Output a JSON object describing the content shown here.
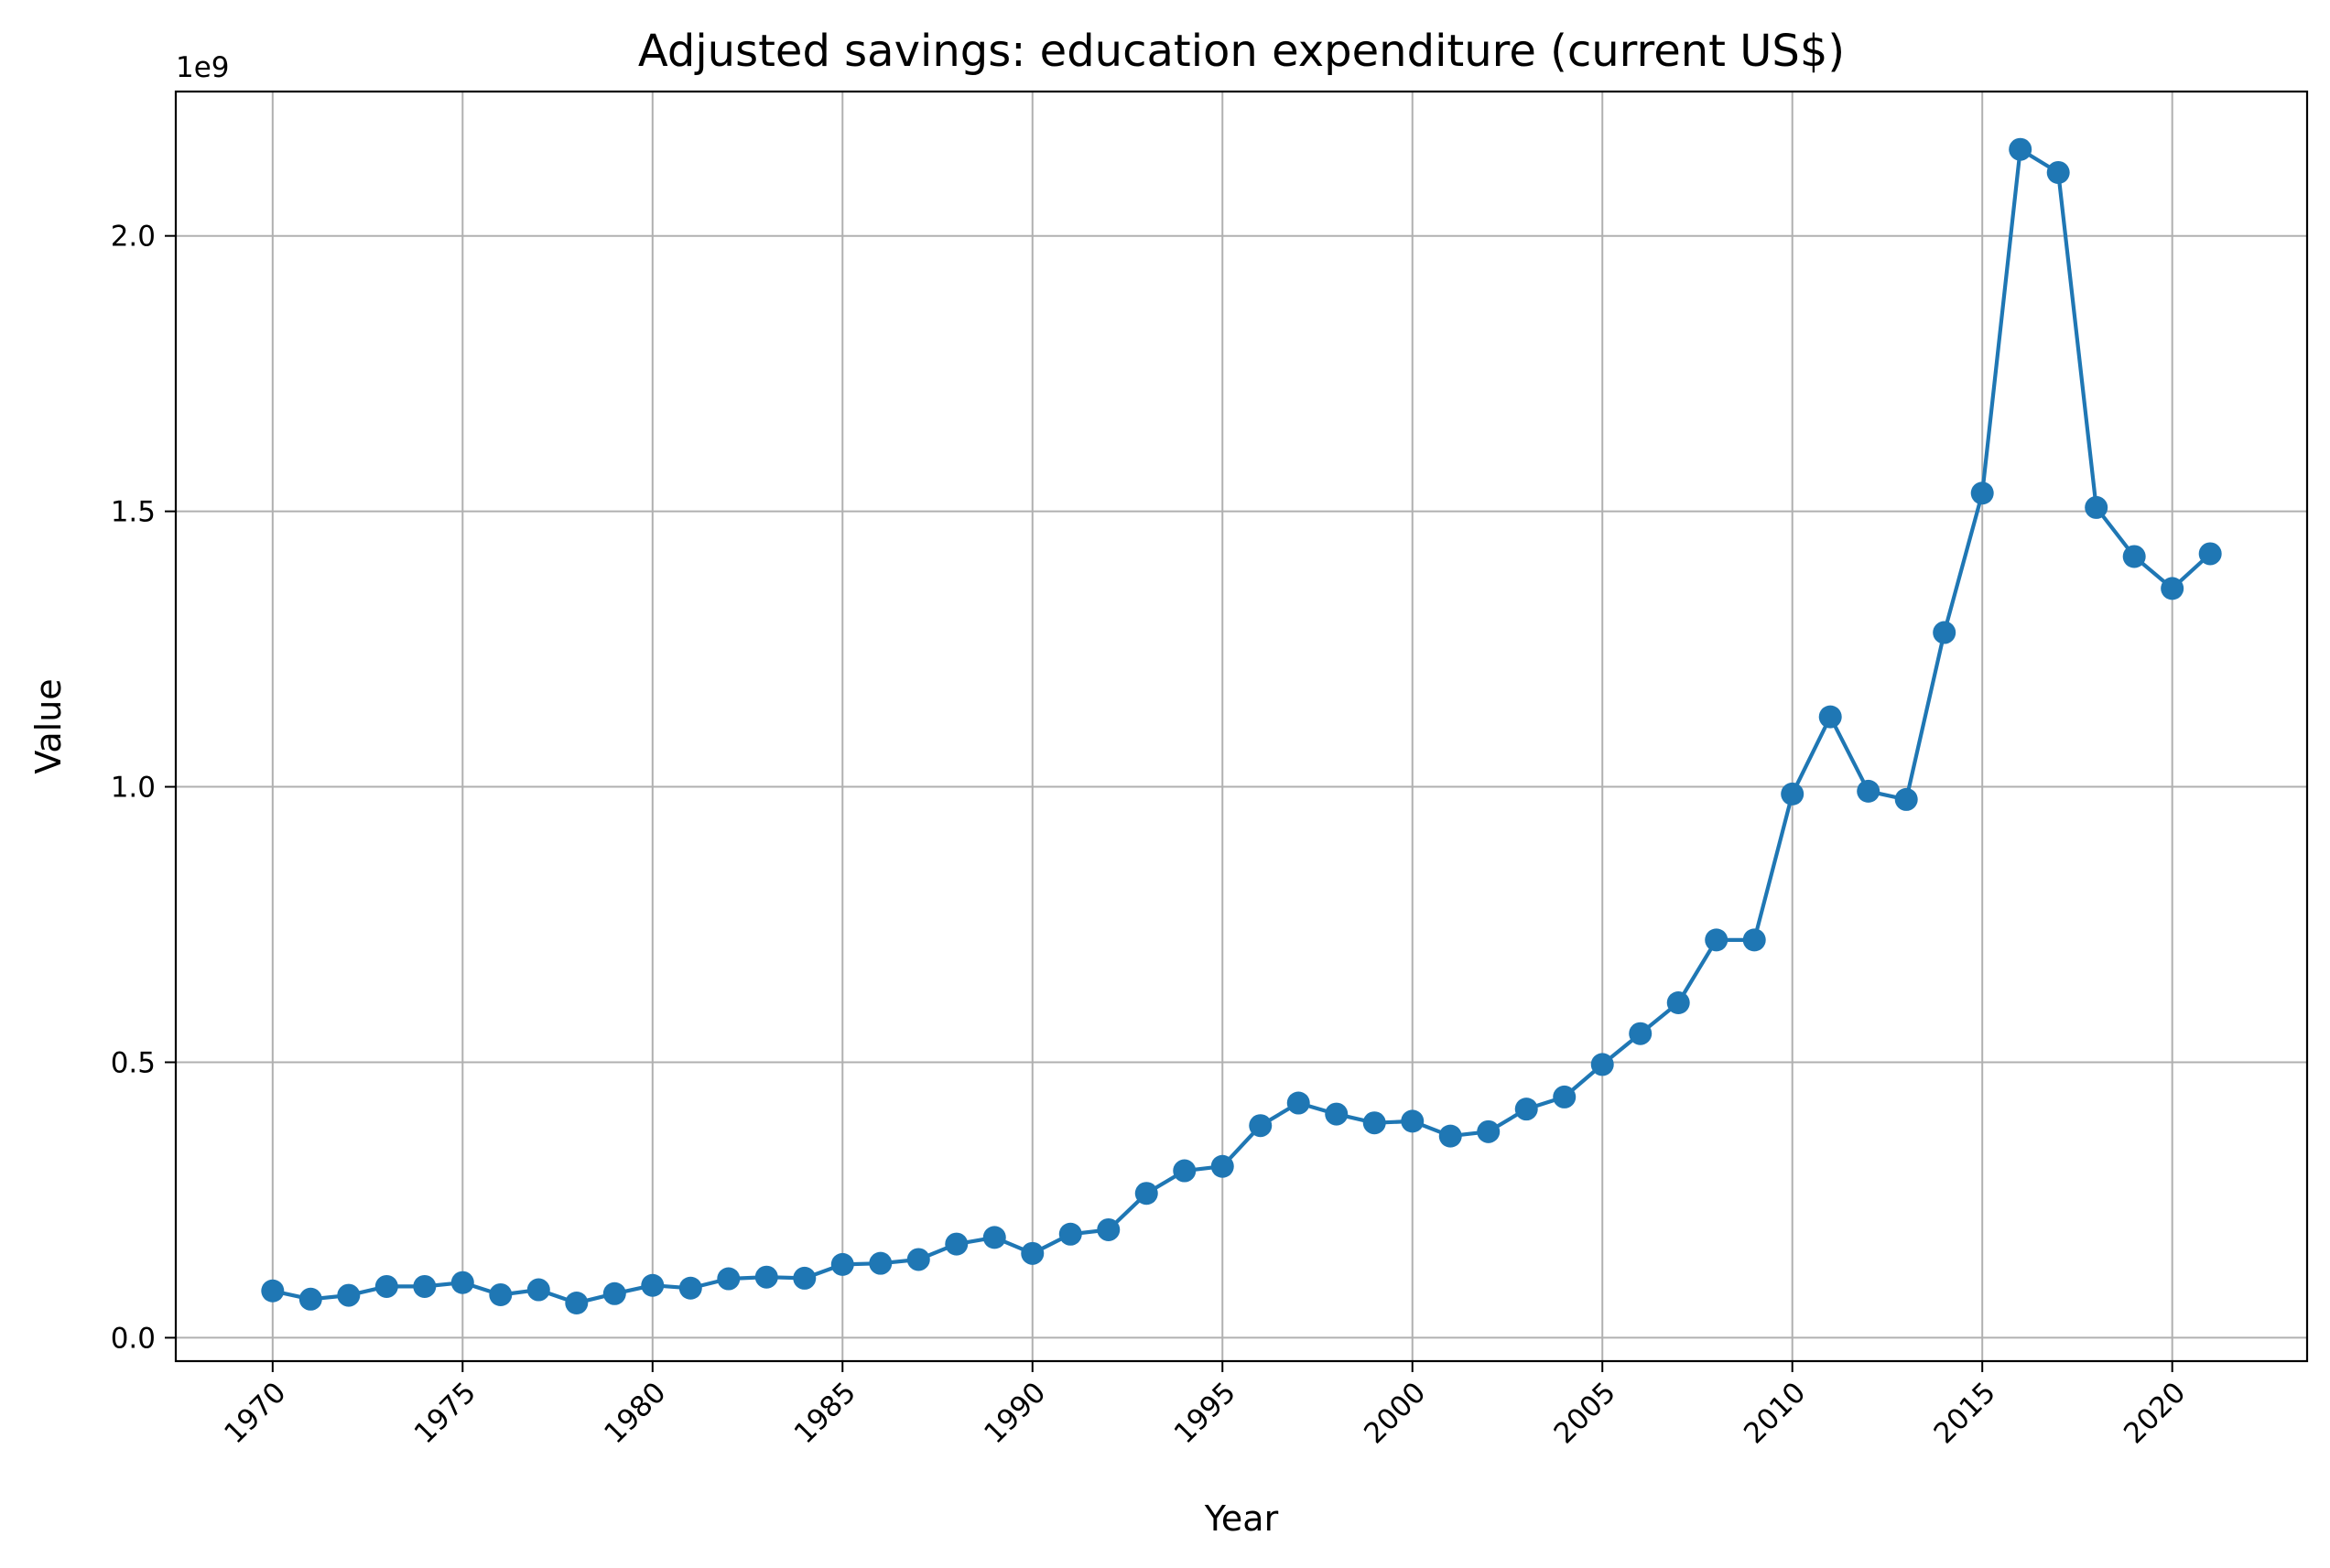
{
  "chart_data": {
    "type": "line",
    "title": "Adjusted savings: education expenditure (current US$)",
    "xlabel": "Year",
    "ylabel": "Value",
    "y_offset_label": "1e9",
    "y_scale": 1000000000,
    "xlim": [
      1967.45,
      2023.55
    ],
    "ylim": [
      -0.0425,
      2.262
    ],
    "grid": true,
    "legend": "none",
    "x_ticks": [
      1970,
      1975,
      1980,
      1985,
      1990,
      1995,
      2000,
      2005,
      2010,
      2015,
      2020
    ],
    "x_tick_labels": [
      "1970",
      "1975",
      "1980",
      "1985",
      "1990",
      "1995",
      "2000",
      "2005",
      "2010",
      "2015",
      "2020"
    ],
    "y_ticks": [
      0.0,
      0.5,
      1.0,
      1.5,
      2.0
    ],
    "y_tick_labels": [
      "0.0",
      "0.5",
      "1.0",
      "1.5",
      "2.0"
    ],
    "color": "#1f77b4",
    "x": [
      1970,
      1971,
      1972,
      1973,
      1974,
      1975,
      1976,
      1977,
      1978,
      1979,
      1980,
      1981,
      1982,
      1983,
      1984,
      1985,
      1986,
      1987,
      1988,
      1989,
      1990,
      1991,
      1992,
      1993,
      1994,
      1995,
      1996,
      1997,
      1998,
      1999,
      2000,
      2001,
      2002,
      2003,
      2004,
      2005,
      2006,
      2007,
      2008,
      2009,
      2010,
      2011,
      2012,
      2013,
      2014,
      2015,
      2016,
      2017,
      2018,
      2019,
      2020,
      2021
    ],
    "values": [
      0.085,
      0.07,
      0.077,
      0.093,
      0.093,
      0.1,
      0.078,
      0.087,
      0.063,
      0.08,
      0.095,
      0.09,
      0.107,
      0.11,
      0.108,
      0.133,
      0.135,
      0.142,
      0.17,
      0.182,
      0.153,
      0.188,
      0.196,
      0.262,
      0.303,
      0.311,
      0.385,
      0.426,
      0.406,
      0.39,
      0.393,
      0.366,
      0.374,
      0.415,
      0.437,
      0.496,
      0.552,
      0.608,
      0.722,
      0.722,
      0.987,
      1.127,
      0.992,
      0.977,
      1.28,
      1.533,
      2.157,
      2.115,
      1.507,
      1.418,
      1.36,
      1.423
    ]
  }
}
